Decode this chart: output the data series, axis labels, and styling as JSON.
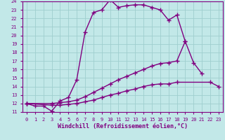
{
  "xlabel": "Windchill (Refroidissement éolien,°C)",
  "bg_color": "#c2e8e8",
  "grid_color": "#9fcece",
  "line_color": "#800080",
  "xlim": [
    -0.5,
    23.5
  ],
  "ylim": [
    11,
    24
  ],
  "xticks": [
    0,
    1,
    2,
    3,
    4,
    5,
    6,
    7,
    8,
    9,
    10,
    11,
    12,
    13,
    14,
    15,
    16,
    17,
    18,
    19,
    20,
    21,
    22,
    23
  ],
  "yticks": [
    11,
    12,
    13,
    14,
    15,
    16,
    17,
    18,
    19,
    20,
    21,
    22,
    23,
    24
  ],
  "line1_x": [
    0,
    1,
    2,
    3,
    4,
    5,
    6,
    7,
    8,
    9,
    10,
    11,
    12,
    13,
    14,
    15,
    16,
    17,
    18,
    19
  ],
  "line1_y": [
    12.0,
    11.7,
    11.7,
    11.1,
    12.3,
    12.7,
    14.8,
    20.4,
    22.7,
    23.0,
    24.2,
    23.3,
    23.5,
    23.6,
    23.6,
    23.3,
    23.0,
    21.8,
    22.4,
    19.3
  ],
  "line2_x": [
    0,
    3,
    4,
    5,
    6,
    7,
    8,
    9,
    10,
    11,
    12,
    13,
    14,
    15,
    16,
    17,
    18,
    19,
    20,
    21
  ],
  "line2_y": [
    12.0,
    12.0,
    12.1,
    12.2,
    12.4,
    12.8,
    13.3,
    13.8,
    14.3,
    14.8,
    15.2,
    15.6,
    16.0,
    16.4,
    16.7,
    16.8,
    17.0,
    19.3,
    16.8,
    15.5
  ],
  "line3_x": [
    0,
    3,
    4,
    5,
    6,
    7,
    8,
    9,
    10,
    11,
    12,
    13,
    14,
    15,
    16,
    17,
    18,
    22,
    23
  ],
  "line3_y": [
    12.0,
    11.8,
    11.8,
    11.9,
    12.0,
    12.2,
    12.4,
    12.7,
    13.0,
    13.2,
    13.5,
    13.7,
    14.0,
    14.2,
    14.3,
    14.3,
    14.5,
    14.5,
    14.0
  ],
  "marker": "+",
  "markersize": 4,
  "linewidth": 1.0,
  "tick_fontsize": 5.0,
  "label_fontsize": 6.0
}
